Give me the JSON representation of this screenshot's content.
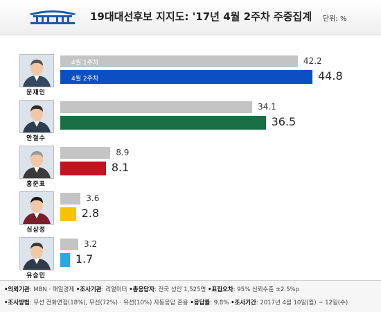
{
  "header": {
    "title": "19대대선후보 지지도: '17년 4월 2주차 주중집계",
    "unit": "단위: %"
  },
  "chart_data": {
    "type": "bar",
    "orientation": "horizontal",
    "categories": [
      "문재인",
      "안철수",
      "홍준표",
      "심상정",
      "유승민"
    ],
    "series": [
      {
        "name": "4월 1주차",
        "values": [
          42.2,
          34.1,
          8.9,
          3.6,
          3.2
        ]
      },
      {
        "name": "4월 2주차",
        "values": [
          44.8,
          36.5,
          8.1,
          2.8,
          1.7
        ]
      }
    ],
    "xlim": [
      0,
      50
    ],
    "grid": false,
    "legend": "inline-first-row"
  },
  "colors": {
    "prev": "#c4c4c4",
    "current": [
      "#0b4fc2",
      "#1a6e44",
      "#c4121f",
      "#f5c400",
      "#29a9e2"
    ]
  },
  "footer": {
    "row1": [
      {
        "key": "•의뢰기관",
        "val": ": MBN · 매일경제"
      },
      {
        "key": "•조사기관",
        "val": ": 리얼미터"
      },
      {
        "key": "•총응답자",
        "val": ": 전국 성인 1,525명"
      },
      {
        "key": "•표집오차",
        "val": ": 95% 신뢰수준 ±2.5%p"
      }
    ],
    "row2": [
      {
        "key": "•조사방법",
        "val": ": 무선 전화면접(18%), 무선(72%) · 유선(10%) 자동응답 혼용"
      },
      {
        "key": "•응답률",
        "val": ": 9.8%"
      },
      {
        "key": "•조사기간",
        "val": ": 2017년 4월 10일(월) ~ 12일(수)"
      }
    ]
  }
}
